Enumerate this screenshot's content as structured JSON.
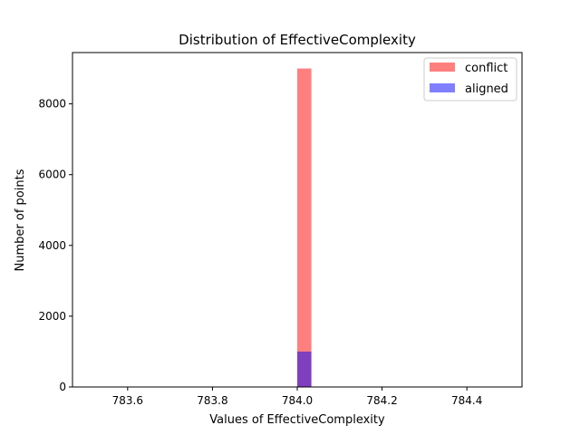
{
  "chart_data": {
    "type": "bar",
    "title": "Distribution of EffectiveComplexity",
    "xlabel": "Values of EffectiveComplexity",
    "ylabel": "Number of points",
    "xlim": [
      783.47,
      784.53
    ],
    "ylim": [
      0,
      9450
    ],
    "xticks": [
      783.6,
      783.8,
      784.0,
      784.2,
      784.4
    ],
    "xtick_labels": [
      "783.6",
      "783.8",
      "784.0",
      "784.2",
      "784.4"
    ],
    "yticks": [
      0,
      2000,
      4000,
      6000,
      8000
    ],
    "ytick_labels": [
      "0",
      "2000",
      "4000",
      "6000",
      "8000"
    ],
    "grid": false,
    "legend_position": "top-right",
    "series": [
      {
        "name": "conflict",
        "color": "#ff0000",
        "opacity": 0.5,
        "bars": [
          {
            "x_start": 784.0,
            "x_end": 784.0333,
            "count": 9000
          }
        ]
      },
      {
        "name": "aligned",
        "color": "#0000ff",
        "opacity": 0.5,
        "bars": [
          {
            "x_start": 784.0,
            "x_end": 784.0333,
            "count": 1000
          }
        ]
      }
    ]
  }
}
